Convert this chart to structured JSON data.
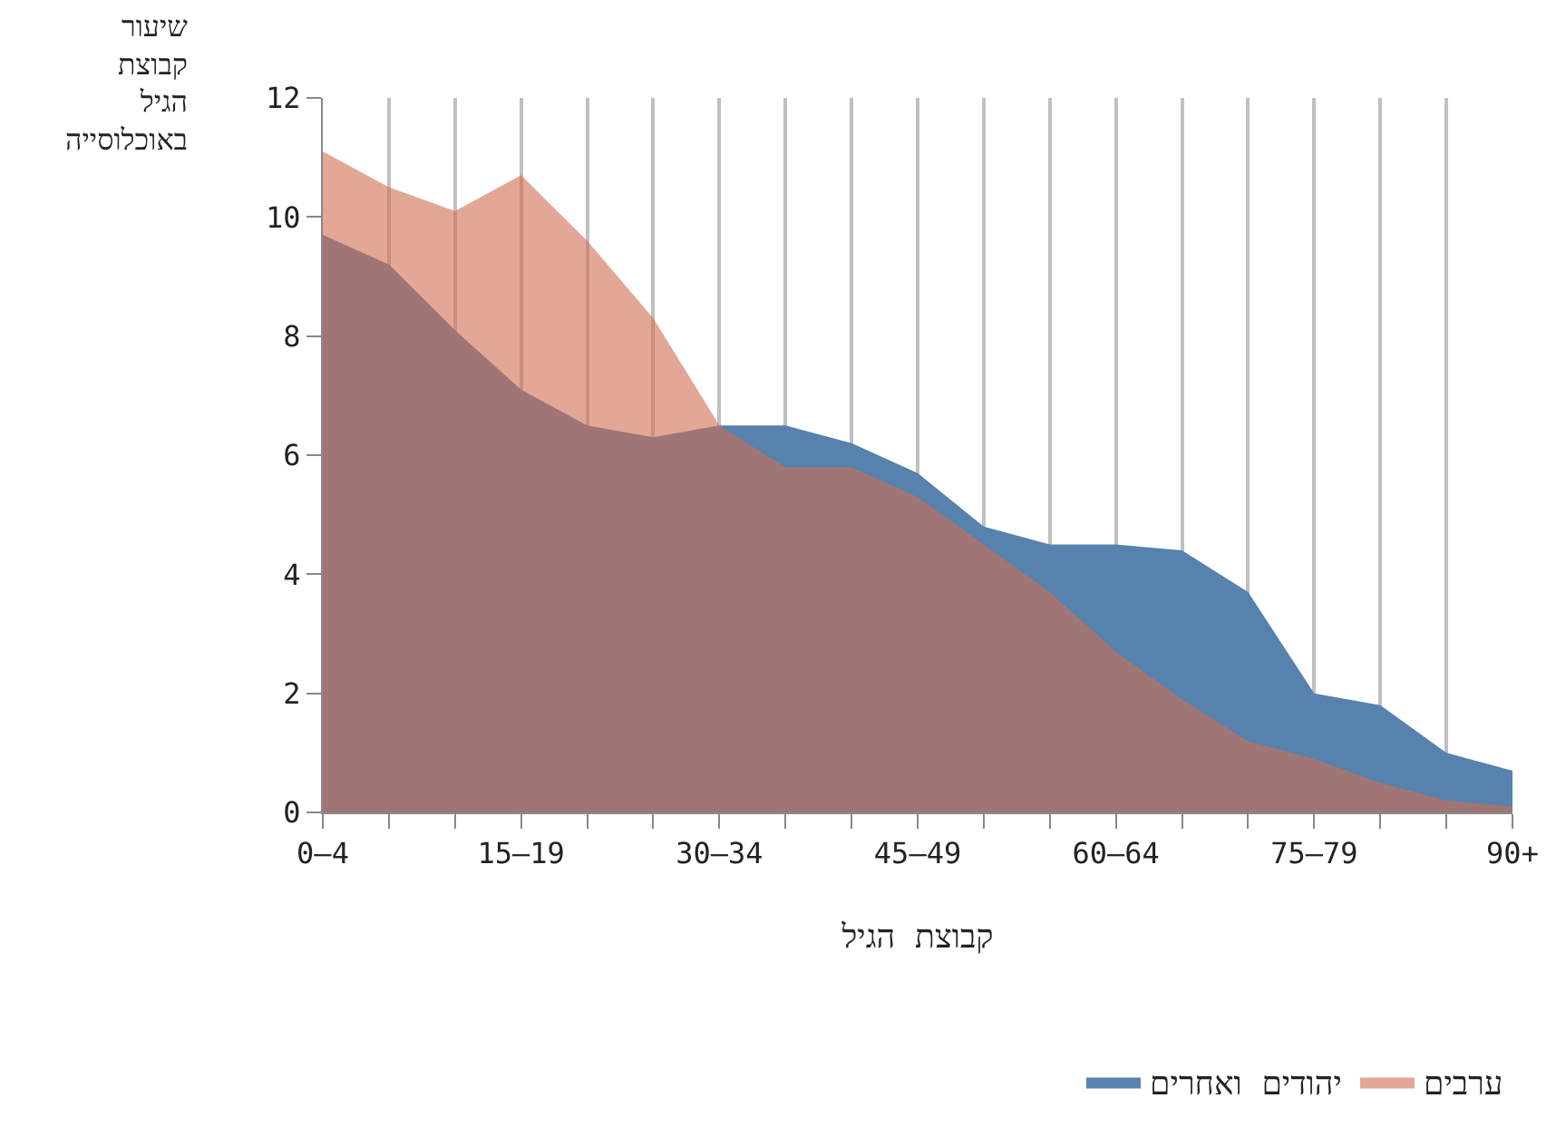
{
  "chart_data": {
    "type": "area",
    "xlabel": "קבוצת הגיל",
    "ylabel": "שיעור קבוצת הגיל באוכלוסייה",
    "categories": [
      "0–4",
      null,
      null,
      "15–19",
      null,
      null,
      "30–34",
      null,
      null,
      "45–49",
      null,
      null,
      "60–64",
      null,
      null,
      "75–79",
      null,
      null,
      "90+"
    ],
    "series": [
      {
        "name": "יהודים ואחרים",
        "color": "#5682ad",
        "values": [
          9.7,
          9.2,
          8.1,
          7.1,
          6.5,
          6.3,
          6.5,
          6.5,
          6.2,
          5.7,
          4.8,
          4.5,
          4.5,
          4.4,
          3.7,
          2.0,
          1.8,
          1.0,
          0.7
        ]
      },
      {
        "name": "ערבים",
        "color": "#d06c50",
        "values": [
          11.1,
          10.5,
          10.1,
          10.7,
          9.6,
          8.3,
          6.5,
          5.8,
          5.8,
          5.3,
          4.5,
          3.7,
          2.7,
          1.9,
          1.2,
          0.9,
          0.5,
          0.2,
          0.1
        ]
      }
    ],
    "ylim": [
      0,
      12
    ],
    "yticks": [
      0,
      2,
      4,
      6,
      8,
      10,
      12
    ],
    "grid": "x",
    "legend": "bottom right"
  }
}
